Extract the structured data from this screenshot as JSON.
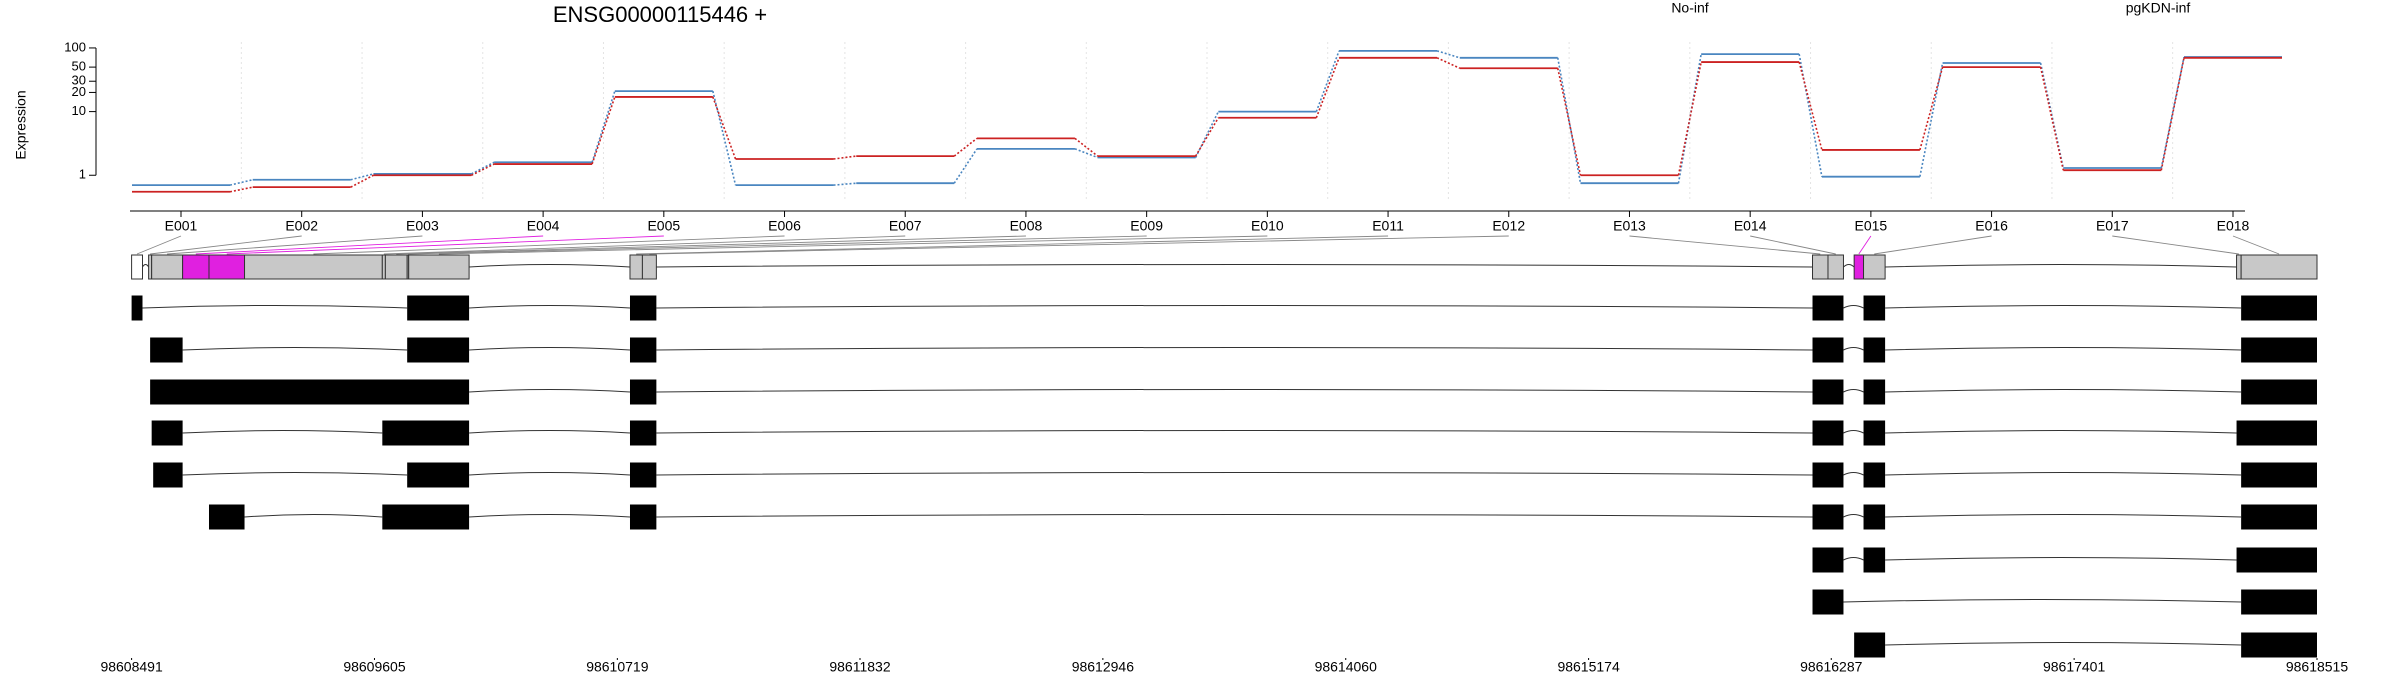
{
  "chart_data": [
    {
      "type": "line",
      "title": "ENSG00000115446 +",
      "y_label": "Expression",
      "log_scale": true,
      "grid": true,
      "categories": [
        "E001",
        "E002",
        "E003",
        "E004",
        "E005",
        "E006",
        "E007",
        "E008",
        "E009",
        "E010",
        "E011",
        "E012",
        "E013",
        "E014",
        "E015",
        "E016",
        "E017",
        "E018"
      ],
      "series": [
        {
          "name": "No-inf",
          "color": "#cc2222",
          "values": [
            0.55,
            0.65,
            1.0,
            1.5,
            17,
            1.8,
            2.0,
            3.8,
            2.0,
            8,
            70,
            48,
            1.0,
            60,
            2.5,
            50,
            1.2,
            70
          ]
        },
        {
          "name": "pgKDN-inf",
          "color": "#4a86c0",
          "values": [
            0.7,
            0.85,
            1.05,
            1.6,
            21,
            0.7,
            0.75,
            2.6,
            1.9,
            10,
            90,
            70,
            0.75,
            80,
            0.95,
            58,
            1.3,
            72
          ]
        }
      ],
      "ylim": [
        0.38,
        124
      ],
      "yticks": [
        1,
        10,
        20,
        30,
        50,
        100
      ]
    },
    {
      "type": "gene_model",
      "xlim": [
        98608491,
        98618515
      ],
      "xticks": [
        98608491,
        98609605,
        98610719,
        98611832,
        98612946,
        98614060,
        98615174,
        98616287,
        98617401,
        98618515
      ],
      "bins": [
        [
          98608491,
          98608541
        ],
        [
          98608569,
          98608583
        ],
        [
          98608583,
          98608725
        ],
        [
          98608725,
          98608846
        ],
        [
          98608846,
          98609009
        ],
        [
          98609009,
          98609641
        ],
        [
          98609641,
          98609655
        ],
        [
          98609655,
          98609755
        ],
        [
          98609755,
          98609762
        ],
        [
          98609762,
          98610039
        ],
        [
          98610777,
          98610834
        ],
        [
          98610834,
          98610898
        ],
        [
          98616201,
          98616272
        ],
        [
          98616272,
          98616343
        ],
        [
          98616392,
          98616435
        ],
        [
          98616435,
          98616534
        ],
        [
          98618146,
          98618167
        ],
        [
          98618167,
          98618515
        ]
      ],
      "bin_colors": [
        "#ffffff",
        "#c8c8c8",
        "#c8c8c8",
        "#e020e0",
        "#e020e0",
        "#c8c8c8",
        "#c8c8c8",
        "#c8c8c8",
        "#c8c8c8",
        "#c8c8c8",
        "#c8c8c8",
        "#c8c8c8",
        "#c8c8c8",
        "#c8c8c8",
        "#e020e0",
        "#c8c8c8",
        "#c8c8c8",
        "#c8c8c8"
      ],
      "transcripts": [
        [
          [
            98608491,
            98608541
          ],
          [
            98609755,
            98610039
          ],
          [
            98610777,
            98610898
          ],
          [
            98616201,
            98616343
          ],
          [
            98616435,
            98616534
          ],
          [
            98618167,
            98618515
          ]
        ],
        [
          [
            98608576,
            98608725
          ],
          [
            98609755,
            98610039
          ],
          [
            98610777,
            98610898
          ],
          [
            98616201,
            98616343
          ],
          [
            98616435,
            98616534
          ],
          [
            98618167,
            98618515
          ]
        ],
        [
          [
            98608576,
            98610039
          ],
          [
            98610777,
            98610898
          ],
          [
            98616201,
            98616343
          ],
          [
            98616435,
            98616534
          ],
          [
            98618167,
            98618515
          ]
        ],
        [
          [
            98608583,
            98608725
          ],
          [
            98609641,
            98610039
          ],
          [
            98610777,
            98610898
          ],
          [
            98616201,
            98616343
          ],
          [
            98616435,
            98616534
          ],
          [
            98618146,
            98618515
          ]
        ],
        [
          [
            98608590,
            98608725
          ],
          [
            98609755,
            98610039
          ],
          [
            98610777,
            98610898
          ],
          [
            98616201,
            98616343
          ],
          [
            98616435,
            98616534
          ],
          [
            98618167,
            98618515
          ]
        ],
        [
          [
            98608846,
            98609009
          ],
          [
            98609641,
            98610039
          ],
          [
            98610777,
            98610898
          ],
          [
            98616201,
            98616343
          ],
          [
            98616435,
            98616534
          ],
          [
            98618167,
            98618515
          ]
        ],
        [
          [
            98616201,
            98616343
          ],
          [
            98616435,
            98616534
          ],
          [
            98618146,
            98618515
          ]
        ],
        [
          [
            98616201,
            98616343
          ],
          [
            98618167,
            98618515
          ]
        ],
        [
          [
            98616392,
            98616534
          ],
          [
            98618167,
            98618515
          ]
        ]
      ]
    }
  ]
}
